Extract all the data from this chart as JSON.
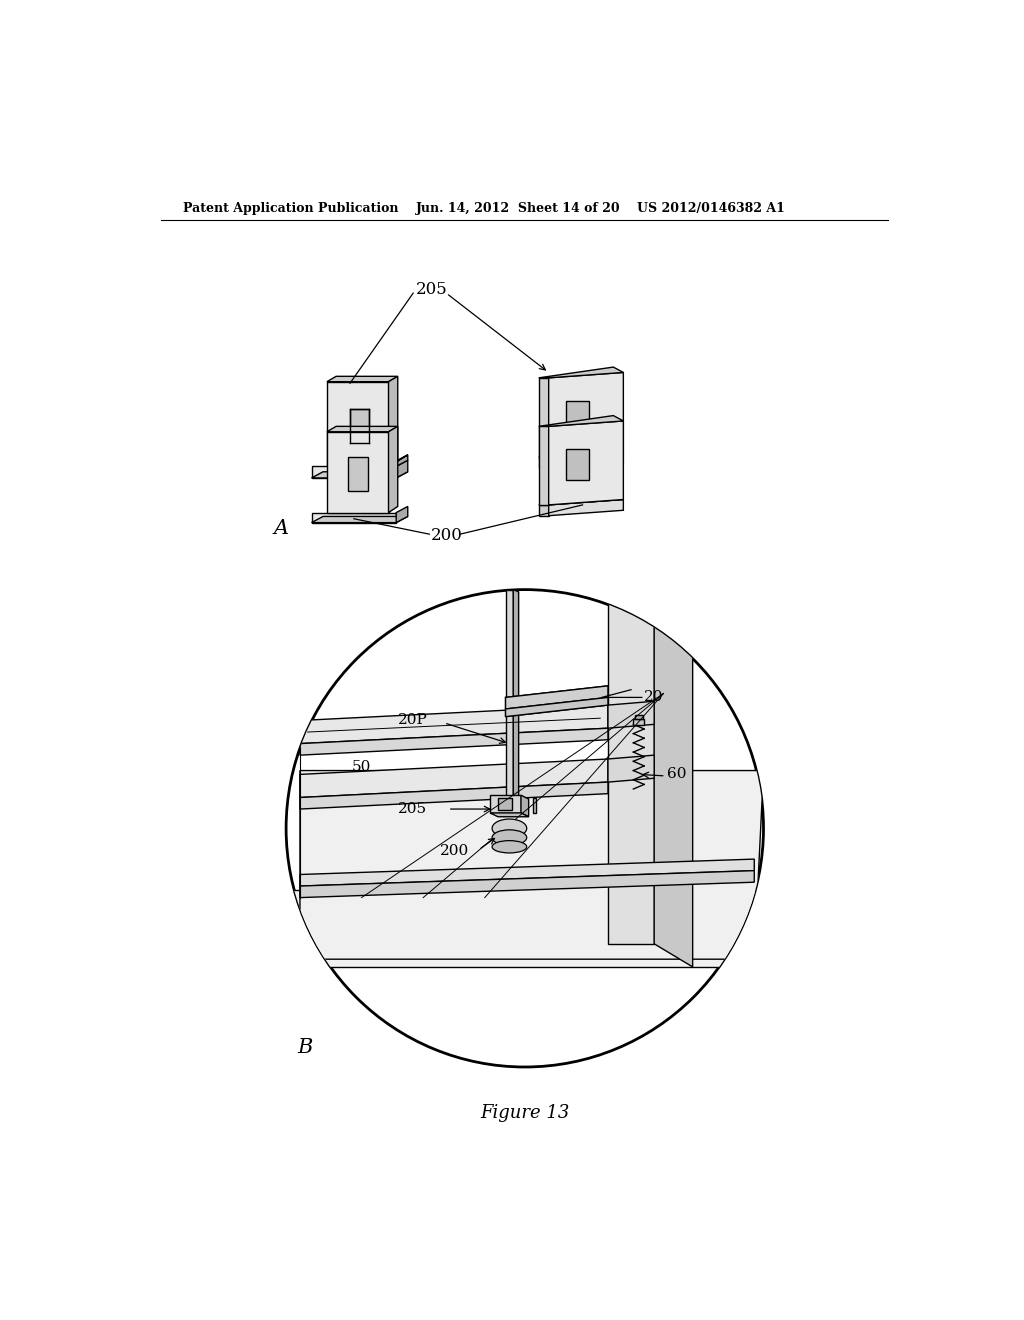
{
  "bg_color": "#ffffff",
  "header_left": "Patent Application Publication",
  "header_mid": "Jun. 14, 2012  Sheet 14 of 20",
  "header_right": "US 2012/0146382 A1",
  "figure_caption": "Figure 13",
  "label_A": "A",
  "label_B": "B",
  "label_200": "200",
  "label_205": "205",
  "label_20P": "20P",
  "label_20": "20",
  "label_50": "50",
  "label_60": "60"
}
